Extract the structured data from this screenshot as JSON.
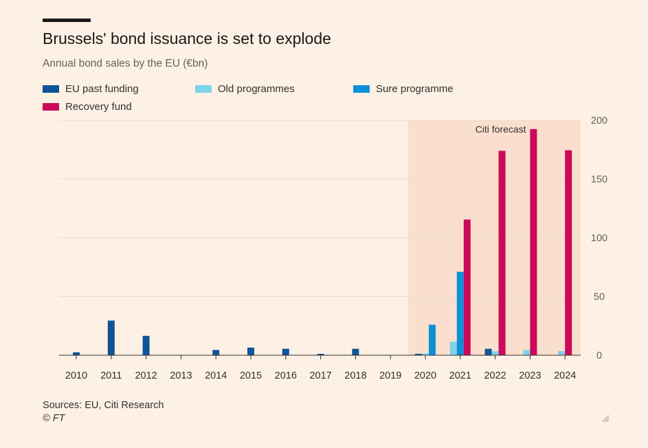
{
  "header": {
    "title": "Brussels' bond issuance is set to explode",
    "subtitle": "Annual bond sales by the EU (€bn)"
  },
  "footer": {
    "source": "Sources: EU, Citi Research",
    "copyright": "© FT"
  },
  "colors": {
    "eu_past": "#0f5499",
    "old_prog": "#7fd3ea",
    "sure": "#0d90d8",
    "recovery": "#cc0a59",
    "forecast_band": "#fbdfce",
    "grid": "#e8dccf",
    "axis": "#33302e",
    "tick_label": "#66605c"
  },
  "chart_data": {
    "type": "bar",
    "title": "Brussels' bond issuance is set to explode",
    "subtitle": "Annual bond sales by the EU (€bn)",
    "xlabel": "",
    "ylabel": "",
    "ylim": [
      0,
      200
    ],
    "yticks": [
      "0",
      "50",
      "100",
      "150",
      "200"
    ],
    "grid": true,
    "legend_position": "top-left",
    "categories": [
      "2010",
      "2011",
      "2012",
      "2013",
      "2014",
      "2015",
      "2016",
      "2017",
      "2018",
      "2019",
      "2020",
      "2021",
      "2022",
      "2023",
      "2024"
    ],
    "series": [
      {
        "name": "EU past funding",
        "color": "#0f5499",
        "values": [
          2.5,
          29.5,
          16.5,
          0,
          4.5,
          6.5,
          5.5,
          1.2,
          5.5,
          0,
          1.2,
          0,
          5.5,
          0,
          0
        ]
      },
      {
        "name": "Old programmes",
        "color": "#7fd3ea",
        "values": [
          0,
          0,
          0,
          0,
          0,
          0,
          0,
          0,
          0,
          0,
          1.5,
          11.5,
          3.5,
          4.5,
          3.5
        ]
      },
      {
        "name": "Sure programme",
        "color": "#0d90d8",
        "values": [
          0,
          0,
          0,
          0,
          0,
          0,
          0,
          0,
          0,
          0,
          26,
          71,
          0,
          0,
          0
        ]
      },
      {
        "name": "Recovery fund",
        "color": "#cc0a59",
        "values": [
          0,
          0,
          0,
          0,
          0,
          0,
          0,
          0,
          0,
          0,
          0,
          115.5,
          174,
          192.5,
          174.5
        ]
      }
    ],
    "forecast_region": {
      "from": "2020",
      "to": "2024",
      "label": "Citi forecast"
    }
  }
}
